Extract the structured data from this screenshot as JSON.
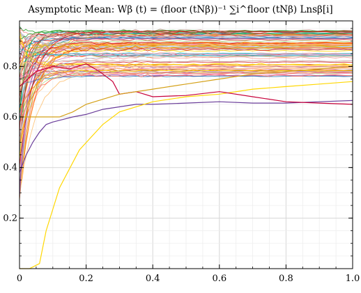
{
  "chart_data": {
    "type": "line",
    "title": "Asymptotic Mean: Wβ (t) = (floor (tNβ))⁻¹ ∑i^floor (tNβ) Lnsβ[i]",
    "xlabel": "",
    "ylabel": "",
    "xlim": [
      0,
      1
    ],
    "ylim": [
      0,
      0.98
    ],
    "grid": true,
    "x_ticks": [
      "0",
      "0.2",
      "0.4",
      "0.6",
      "0.8",
      "1.0"
    ],
    "y_ticks": [
      "0.2",
      "0.4",
      "0.6",
      "0.8"
    ],
    "x_tick_values": [
      0,
      0.2,
      0.4,
      0.6,
      0.8,
      1.0
    ],
    "y_tick_values": [
      0.2,
      0.4,
      0.6,
      0.8
    ],
    "series_count": 85,
    "series_colors": [
      "#e41a1c",
      "#ff7f00",
      "#ffd700",
      "#f28e8e",
      "#d62728",
      "#ff9896",
      "#fdbf6f",
      "#984ea3",
      "#17becf",
      "#2ca02c",
      "#1f77b4",
      "#8c564b",
      "#f781bf",
      "#b2df8a",
      "#a6cee3",
      "#cab2d6",
      "#ffbb78",
      "#c49c94",
      "#ff6f61",
      "#e6ab02"
    ],
    "highlighted_series": [
      {
        "color": "#6a3d9a",
        "x": [
          0.0,
          0.02,
          0.04,
          0.06,
          0.08,
          0.1,
          0.13,
          0.16,
          0.2,
          0.25,
          0.3,
          0.35,
          0.4,
          0.5,
          0.6,
          0.7,
          0.8,
          0.9,
          1.0
        ],
        "y": [
          0.38,
          0.45,
          0.5,
          0.54,
          0.57,
          0.58,
          0.59,
          0.6,
          0.61,
          0.63,
          0.64,
          0.65,
          0.65,
          0.655,
          0.66,
          0.655,
          0.655,
          0.66,
          0.665
        ]
      },
      {
        "color": "#ffd700",
        "x": [
          0.0,
          0.03,
          0.06,
          0.08,
          0.12,
          0.18,
          0.25,
          0.3,
          0.4,
          0.5,
          0.6,
          0.7,
          0.8,
          0.9,
          1.0
        ],
        "y": [
          0.0,
          0.0,
          0.02,
          0.15,
          0.32,
          0.47,
          0.57,
          0.62,
          0.66,
          0.68,
          0.69,
          0.71,
          0.72,
          0.73,
          0.74
        ]
      },
      {
        "color": "#c7003a",
        "x": [
          0.0,
          0.05,
          0.1,
          0.15,
          0.2,
          0.24,
          0.28,
          0.3,
          0.35,
          0.4,
          0.5,
          0.6,
          0.7,
          0.8,
          0.9,
          1.0
        ],
        "y": [
          0.72,
          0.78,
          0.8,
          0.79,
          0.81,
          0.78,
          0.74,
          0.69,
          0.7,
          0.68,
          0.685,
          0.7,
          0.68,
          0.66,
          0.655,
          0.65
        ]
      },
      {
        "color": "#d4a017",
        "x": [
          0.0,
          0.04,
          0.08,
          0.12,
          0.16,
          0.2,
          0.3,
          0.4,
          0.5,
          0.6,
          0.7,
          0.8,
          0.9,
          1.0
        ],
        "y": [
          0.6,
          0.6,
          0.6,
          0.6,
          0.62,
          0.65,
          0.69,
          0.71,
          0.73,
          0.75,
          0.77,
          0.78,
          0.79,
          0.8
        ]
      }
    ]
  }
}
